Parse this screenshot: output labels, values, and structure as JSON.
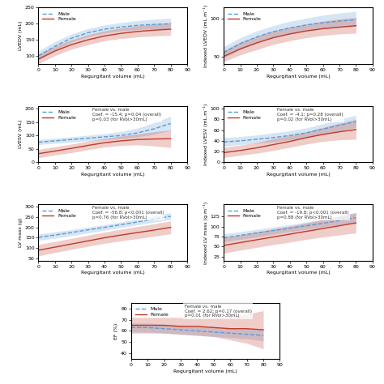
{
  "chart_data": [
    {
      "type": "line",
      "xlabel": "Regurgitant volume (mL)",
      "ylabel": "LVEDV (mL)",
      "x": [
        0,
        10,
        20,
        30,
        40,
        50,
        60,
        70,
        80
      ],
      "xlim": [
        0,
        90
      ],
      "xticks": [
        0,
        10,
        20,
        30,
        40,
        50,
        60,
        70,
        80,
        90
      ],
      "ylim": [
        75,
        250
      ],
      "yticks": [
        100,
        150,
        200,
        250
      ],
      "grid": false,
      "legend": "upper left",
      "series": [
        {
          "name": "Male",
          "color": "#5b9bd5",
          "line_style": "dashed",
          "values": [
            100,
            130,
            155,
            172,
            183,
            190,
            195,
            198,
            200
          ],
          "upper": [
            115,
            145,
            168,
            185,
            196,
            204,
            210,
            214,
            217
          ],
          "lower": [
            87,
            117,
            143,
            160,
            171,
            178,
            182,
            184,
            185
          ]
        },
        {
          "name": "Female",
          "color": "#c0392b",
          "line_style": "solid",
          "values": [
            90,
            115,
            135,
            150,
            162,
            170,
            176,
            180,
            183
          ],
          "upper": [
            105,
            130,
            150,
            166,
            178,
            187,
            194,
            199,
            203
          ],
          "lower": [
            76,
            101,
            121,
            135,
            147,
            154,
            159,
            162,
            164
          ]
        }
      ]
    },
    {
      "type": "line",
      "xlabel": "Regurgitant volume (mL)",
      "ylabel": "Indexed LVEDV (mL.m⁻¹)",
      "x": [
        0,
        10,
        20,
        30,
        40,
        50,
        60,
        70,
        80
      ],
      "xlim": [
        0,
        90
      ],
      "xticks": [
        0,
        10,
        20,
        30,
        40,
        50,
        60,
        70,
        80,
        90
      ],
      "ylim": [
        40,
        115
      ],
      "yticks": [
        50,
        100
      ],
      "grid": false,
      "legend": "upper left",
      "series": [
        {
          "name": "Male",
          "color": "#5b9bd5",
          "line_style": "dashed",
          "values": [
            55,
            67,
            76,
            83,
            88,
            92,
            95,
            97,
            99
          ],
          "upper": [
            63,
            75,
            84,
            91,
            97,
            101,
            105,
            108,
            110
          ],
          "lower": [
            48,
            59,
            68,
            75,
            80,
            84,
            87,
            89,
            90
          ]
        },
        {
          "name": "Female",
          "color": "#c0392b",
          "line_style": "solid",
          "values": [
            50,
            60,
            68,
            75,
            80,
            84,
            87,
            89,
            91
          ],
          "upper": [
            58,
            69,
            77,
            84,
            89,
            93,
            97,
            100,
            102
          ],
          "lower": [
            43,
            52,
            59,
            66,
            71,
            75,
            78,
            80,
            81
          ]
        }
      ]
    },
    {
      "type": "line",
      "xlabel": "Regurgitant volume (mL)",
      "ylabel": "LVESV (mL)",
      "annotation": "Female vs. male\nCoef. = -15.4; p=0.04 (overall)\np=0.03 (for RVol>30mL)",
      "x": [
        0,
        10,
        20,
        30,
        40,
        50,
        60,
        70,
        80
      ],
      "xlim": [
        0,
        90
      ],
      "xticks": [
        0,
        10,
        20,
        30,
        40,
        50,
        60,
        70,
        80,
        90
      ],
      "ylim": [
        0,
        210
      ],
      "yticks": [
        0,
        50,
        100,
        150,
        200
      ],
      "grid": false,
      "legend": "upper left",
      "series": [
        {
          "name": "Male",
          "color": "#5b9bd5",
          "line_style": "dashed",
          "values": [
            75,
            80,
            85,
            90,
            95,
            100,
            110,
            125,
            145
          ],
          "upper": [
            85,
            90,
            95,
            101,
            107,
            115,
            128,
            148,
            172
          ],
          "lower": [
            66,
            71,
            75,
            80,
            84,
            88,
            95,
            105,
            119
          ]
        },
        {
          "name": "Female",
          "color": "#c0392b",
          "line_style": "solid",
          "values": [
            32,
            42,
            52,
            63,
            73,
            80,
            85,
            87,
            88
          ],
          "upper": [
            48,
            58,
            68,
            79,
            89,
            98,
            106,
            114,
            120
          ],
          "lower": [
            17,
            27,
            36,
            47,
            57,
            63,
            65,
            61,
            55
          ]
        }
      ]
    },
    {
      "type": "line",
      "xlabel": "Regurgitant volume (mL)",
      "ylabel": "Indexed LVESV (mL.m⁻¹)",
      "annotation": "Female vs. male\nCoef. = -4.1; p=0.28 (overall)\np=0.02 (for RVol>30mL)",
      "x": [
        0,
        10,
        20,
        30,
        40,
        50,
        60,
        70,
        80
      ],
      "xlim": [
        0,
        90
      ],
      "xticks": [
        0,
        10,
        20,
        30,
        40,
        50,
        60,
        70,
        80,
        90
      ],
      "ylim": [
        0,
        105
      ],
      "yticks": [
        0,
        20,
        40,
        60,
        80,
        100
      ],
      "grid": false,
      "legend": "upper left",
      "series": [
        {
          "name": "Male",
          "color": "#5b9bd5",
          "line_style": "dashed",
          "values": [
            38,
            40,
            43,
            46,
            50,
            55,
            62,
            69,
            76
          ],
          "upper": [
            46,
            48,
            51,
            55,
            59,
            64,
            72,
            80,
            88
          ],
          "lower": [
            30,
            33,
            36,
            38,
            42,
            47,
            53,
            59,
            65
          ]
        },
        {
          "name": "Female",
          "color": "#c0392b",
          "line_style": "solid",
          "values": [
            18,
            22,
            27,
            33,
            39,
            46,
            52,
            57,
            61
          ],
          "upper": [
            28,
            32,
            37,
            44,
            50,
            57,
            65,
            73,
            80
          ],
          "lower": [
            9,
            13,
            17,
            22,
            28,
            34,
            39,
            42,
            43
          ]
        }
      ]
    },
    {
      "type": "line",
      "xlabel": "Regurgitant volume (mL)",
      "ylabel": "LV mass (g)",
      "annotation": "Female vs. male\nCoef. = -56.8; p<0.001 (overall)\np=0.76 (for RVol>30mL)",
      "x": [
        0,
        10,
        20,
        30,
        40,
        50,
        60,
        70,
        80
      ],
      "xlim": [
        0,
        90
      ],
      "xticks": [
        0,
        10,
        20,
        30,
        40,
        50,
        60,
        70,
        80,
        90
      ],
      "ylim": [
        40,
        310
      ],
      "yticks": [
        50,
        100,
        150,
        200,
        250,
        300
      ],
      "grid": false,
      "legend": "upper left",
      "series": [
        {
          "name": "Male",
          "color": "#5b9bd5",
          "line_style": "dashed",
          "values": [
            152,
            163,
            175,
            188,
            200,
            213,
            226,
            240,
            253
          ],
          "upper": [
            168,
            178,
            189,
            201,
            213,
            226,
            240,
            255,
            270
          ],
          "lower": [
            137,
            148,
            160,
            173,
            186,
            199,
            212,
            225,
            238
          ]
        },
        {
          "name": "Female",
          "color": "#c0392b",
          "line_style": "solid",
          "values": [
            90,
            105,
            120,
            135,
            150,
            163,
            175,
            187,
            200
          ],
          "upper": [
            118,
            132,
            147,
            162,
            177,
            191,
            204,
            217,
            231
          ],
          "lower": [
            63,
            79,
            94,
            109,
            123,
            135,
            146,
            157,
            169
          ]
        }
      ]
    },
    {
      "type": "line",
      "xlabel": "Regurgitant volume (mL)",
      "ylabel": "Indexed LV mass (g.m⁻¹)",
      "annotation": "Female vs. male\nCoef. = -19.8; p<0.001 (overall)\np=0.88 (for RVol>30mL)",
      "x": [
        0,
        10,
        20,
        30,
        40,
        50,
        60,
        70,
        80
      ],
      "xlim": [
        0,
        90
      ],
      "xticks": [
        0,
        10,
        20,
        30,
        40,
        50,
        60,
        70,
        80,
        90
      ],
      "ylim": [
        15,
        155
      ],
      "yticks": [
        25,
        50,
        75,
        100,
        125
      ],
      "grid": false,
      "legend": "upper left",
      "series": [
        {
          "name": "Male",
          "color": "#5b9bd5",
          "line_style": "dashed",
          "values": [
            72,
            78,
            84,
            90,
            96,
            102,
            108,
            115,
            122
          ],
          "upper": [
            82,
            87,
            93,
            99,
            105,
            111,
            118,
            126,
            134
          ],
          "lower": [
            62,
            68,
            74,
            81,
            87,
            93,
            99,
            105,
            111
          ]
        },
        {
          "name": "Female",
          "color": "#c0392b",
          "line_style": "solid",
          "values": [
            53,
            60,
            67,
            74,
            81,
            88,
            95,
            102,
            109
          ],
          "upper": [
            72,
            79,
            87,
            94,
            101,
            109,
            117,
            126,
            135
          ],
          "lower": [
            34,
            41,
            48,
            55,
            61,
            68,
            74,
            79,
            84
          ]
        }
      ]
    },
    {
      "type": "line",
      "xlabel": "Regurgitant volume (mL)",
      "ylabel": "EF (%)",
      "annotation": "Female vs. male\nCoef. = 2.62; p=0.17 (overall)\np=0.01 (for RVol>30mL)",
      "x": [
        0,
        10,
        20,
        30,
        40,
        50,
        60,
        70,
        80
      ],
      "xlim": [
        0,
        90
      ],
      "xticks": [
        0,
        10,
        20,
        30,
        40,
        50,
        60,
        70,
        80,
        90
      ],
      "ylim": [
        35,
        85
      ],
      "yticks": [
        40,
        50,
        60,
        70,
        80
      ],
      "grid": false,
      "legend": "upper left",
      "series": [
        {
          "name": "Male",
          "color": "#5b9bd5",
          "line_style": "dashed",
          "values": [
            63,
            63,
            62,
            61,
            60,
            59,
            58,
            57,
            56
          ],
          "upper": [
            67,
            67,
            66,
            65,
            64,
            63,
            62,
            62,
            62
          ],
          "lower": [
            59,
            59,
            58,
            57,
            56,
            55,
            54,
            53,
            51
          ]
        },
        {
          "name": "Female",
          "color": "#c0392b",
          "line_style": "solid",
          "values": [
            65,
            65,
            65,
            64,
            64,
            63,
            62,
            62,
            61
          ],
          "upper": [
            72,
            72,
            72,
            72,
            72,
            72,
            73,
            75,
            78
          ],
          "lower": [
            58,
            58,
            58,
            57,
            56,
            55,
            52,
            49,
            44
          ]
        }
      ]
    }
  ]
}
